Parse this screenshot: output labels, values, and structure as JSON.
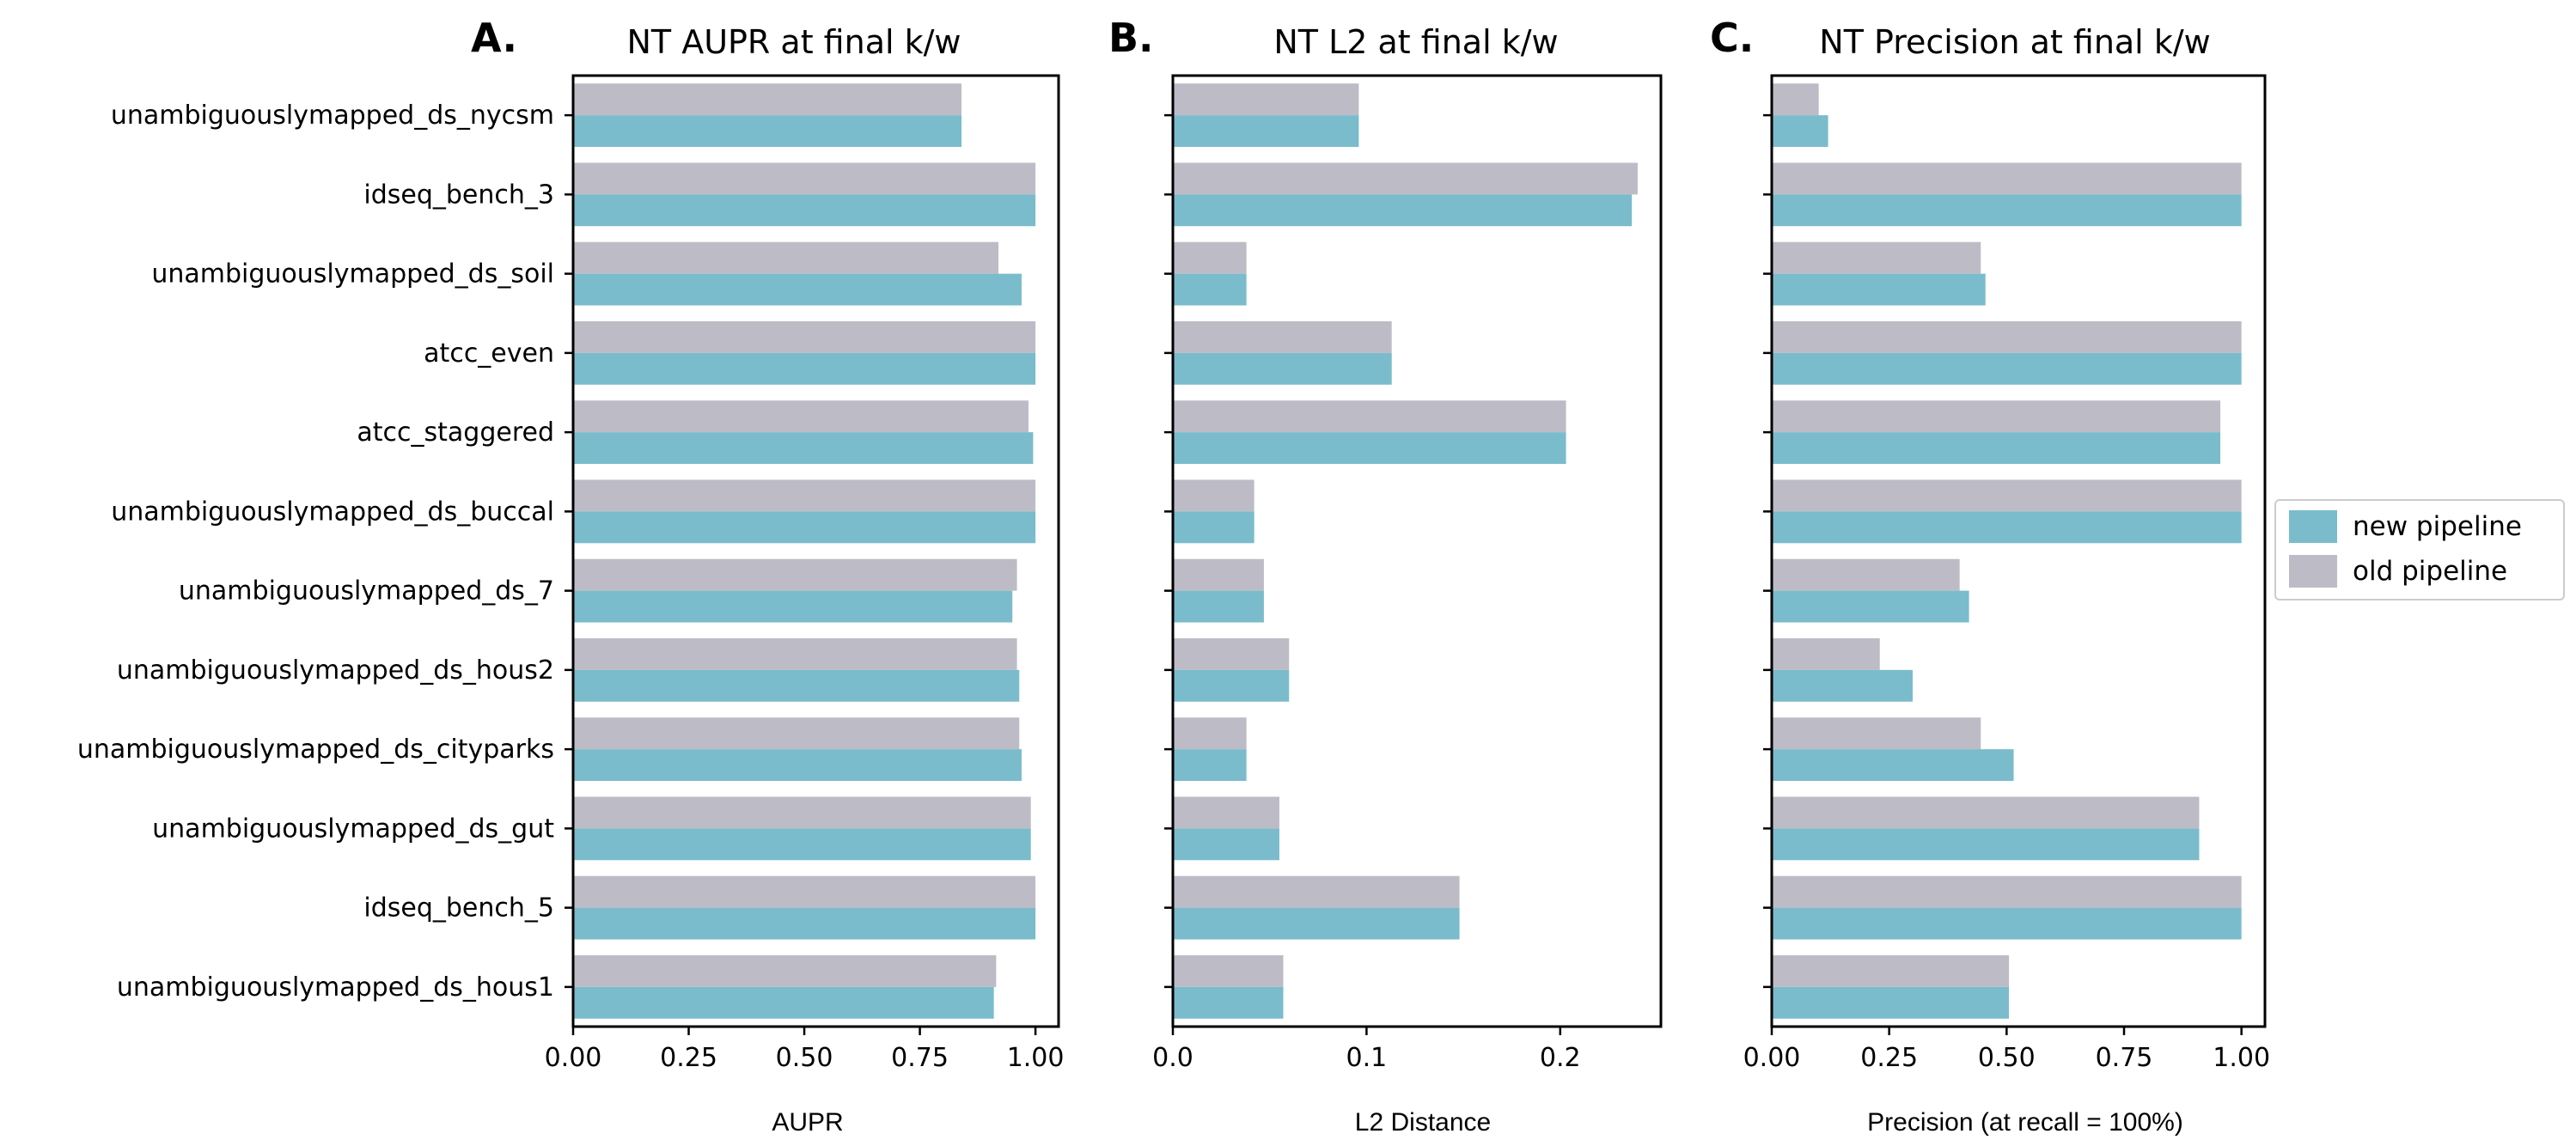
{
  "chart_data": [
    {
      "type": "bar",
      "orientation": "horizontal",
      "panel_letter": "A.",
      "title": "NT AUPR at final k/w",
      "xlabel": "AUPR",
      "ylabel": "",
      "xlim": [
        0,
        1.05
      ],
      "xticks": [
        0.0,
        0.25,
        0.5,
        0.75,
        1.0
      ],
      "xtick_labels": [
        "0.00",
        "0.25",
        "0.50",
        "0.75",
        "1.00"
      ],
      "grid": false,
      "categories": [
        "unambiguouslymapped_ds_nycsm",
        "idseq_bench_3",
        "unambiguouslymapped_ds_soil",
        "atcc_even",
        "atcc_staggered",
        "unambiguouslymapped_ds_buccal",
        "unambiguouslymapped_ds_7",
        "unambiguouslymapped_ds_hous2",
        "unambiguouslymapped_ds_cityparks",
        "unambiguouslymapped_ds_gut",
        "idseq_bench_5",
        "unambiguouslymapped_ds_hous1"
      ],
      "series": [
        {
          "name": "new pipeline",
          "color": "#7abccb",
          "values": [
            0.84,
            1.0,
            0.97,
            1.0,
            0.995,
            1.0,
            0.95,
            0.965,
            0.97,
            0.99,
            1.0,
            0.91
          ]
        },
        {
          "name": "old pipeline",
          "color": "#bdbcc6",
          "values": [
            0.84,
            1.0,
            0.92,
            1.0,
            0.985,
            1.0,
            0.96,
            0.96,
            0.965,
            0.99,
            1.0,
            0.915
          ]
        }
      ]
    },
    {
      "type": "bar",
      "orientation": "horizontal",
      "panel_letter": "B.",
      "title": "NT L2 at final k/w",
      "xlabel": "L2 Distance",
      "ylabel": "",
      "xlim": [
        0,
        0.252
      ],
      "xticks": [
        0.0,
        0.1,
        0.2
      ],
      "xtick_labels": [
        "0.0",
        "0.1",
        "0.2"
      ],
      "grid": false,
      "categories": [
        "unambiguouslymapped_ds_nycsm",
        "idseq_bench_3",
        "unambiguouslymapped_ds_soil",
        "atcc_even",
        "atcc_staggered",
        "unambiguouslymapped_ds_buccal",
        "unambiguouslymapped_ds_7",
        "unambiguouslymapped_ds_hous2",
        "unambiguouslymapped_ds_cityparks",
        "unambiguouslymapped_ds_gut",
        "idseq_bench_5",
        "unambiguouslymapped_ds_hous1"
      ],
      "series": [
        {
          "name": "new pipeline",
          "color": "#7abccb",
          "values": [
            0.096,
            0.237,
            0.038,
            0.113,
            0.203,
            0.042,
            0.047,
            0.06,
            0.038,
            0.055,
            0.148,
            0.057
          ]
        },
        {
          "name": "old pipeline",
          "color": "#bdbcc6",
          "values": [
            0.096,
            0.24,
            0.038,
            0.113,
            0.203,
            0.042,
            0.047,
            0.06,
            0.038,
            0.055,
            0.148,
            0.057
          ]
        }
      ]
    },
    {
      "type": "bar",
      "orientation": "horizontal",
      "panel_letter": "C.",
      "title": "NT Precision at final k/w",
      "xlabel": "Precision (at recall = 100%)",
      "ylabel": "",
      "xlim": [
        0,
        1.05
      ],
      "xticks": [
        0.0,
        0.25,
        0.5,
        0.75,
        1.0
      ],
      "xtick_labels": [
        "0.00",
        "0.25",
        "0.50",
        "0.75",
        "1.00"
      ],
      "grid": false,
      "categories": [
        "unambiguouslymapped_ds_nycsm",
        "idseq_bench_3",
        "unambiguouslymapped_ds_soil",
        "atcc_even",
        "atcc_staggered",
        "unambiguouslymapped_ds_buccal",
        "unambiguouslymapped_ds_7",
        "unambiguouslymapped_ds_hous2",
        "unambiguouslymapped_ds_cityparks",
        "unambiguouslymapped_ds_gut",
        "idseq_bench_5",
        "unambiguouslymapped_ds_hous1"
      ],
      "series": [
        {
          "name": "new pipeline",
          "color": "#7abccb",
          "values": [
            0.12,
            1.0,
            0.455,
            1.0,
            0.955,
            1.0,
            0.42,
            0.3,
            0.515,
            0.91,
            1.0,
            0.505
          ]
        },
        {
          "name": "old pipeline",
          "color": "#bdbcc6",
          "values": [
            0.1,
            1.0,
            0.445,
            1.0,
            0.955,
            1.0,
            0.4,
            0.23,
            0.445,
            0.91,
            1.0,
            0.505
          ]
        }
      ]
    }
  ],
  "legend": {
    "placement": "right",
    "items": [
      {
        "label": "new pipeline",
        "color": "#7abccb"
      },
      {
        "label": "old pipeline",
        "color": "#bdbcc6"
      }
    ]
  }
}
